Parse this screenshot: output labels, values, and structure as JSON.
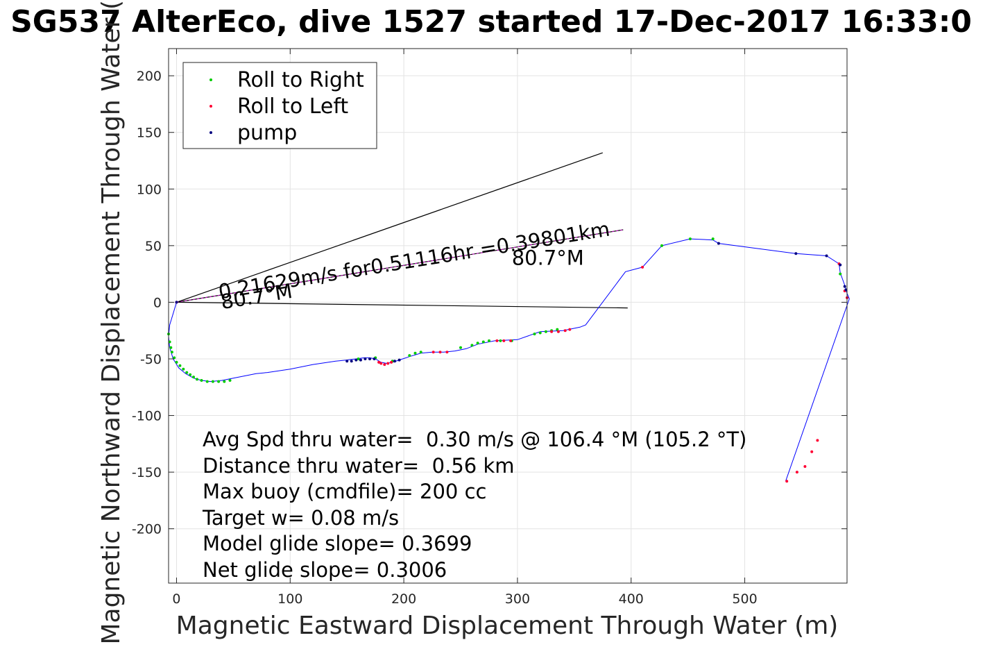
{
  "chart_data": {
    "type": "line",
    "title": "SG537 AlterEco, dive 1527 started 17-Dec-2017 16:33:0",
    "xlabel": "Magnetic Eastward Displacement Through Water (m)",
    "ylabel": "Magnetic Northward Displacement Through Water (",
    "xlim": [
      -7,
      590
    ],
    "ylim": [
      -248,
      224
    ],
    "xticks": [
      0,
      100,
      200,
      300,
      400,
      500
    ],
    "xtick_labels": [
      "0",
      "100",
      "200",
      "300",
      "400",
      "500"
    ],
    "yticks": [
      200,
      150,
      100,
      50,
      0,
      -50,
      -100,
      -150,
      -200
    ],
    "ytick_labels": [
      "200",
      "150",
      "100",
      "50",
      "0",
      "-50",
      "-100",
      "-150",
      "-200"
    ],
    "grid": true,
    "legend_position": "top-left",
    "colors": {
      "track": "#0000ff",
      "roll_right": "#00cc00",
      "roll_left": "#ff0033",
      "pump": "#000080",
      "wedge": "#000000",
      "avg_line": "#cc00cc"
    },
    "series": [
      {
        "name": "track",
        "x": [
          0,
          -3,
          -6,
          -7,
          -6,
          -3,
          2,
          8,
          15,
          22,
          30,
          40,
          50,
          60,
          70,
          80,
          100,
          120,
          140,
          150,
          158,
          165,
          170,
          175,
          180,
          185,
          190,
          196,
          205,
          215,
          225,
          235,
          245,
          255,
          265,
          280,
          300,
          320,
          340,
          355,
          360,
          395,
          410,
          427,
          452,
          472,
          477,
          545,
          572,
          583,
          584,
          588,
          590,
          592,
          536
        ],
        "y": [
          0,
          -10,
          -20,
          -30,
          -40,
          -50,
          -58,
          -63,
          -67,
          -69,
          -70,
          -69,
          -67,
          -65,
          -63,
          -62,
          -59,
          -55,
          -52,
          -51,
          -50,
          -49,
          -49,
          -50,
          -53,
          -54,
          -53,
          -51,
          -48,
          -45,
          -44,
          -44,
          -43,
          -41,
          -37,
          -34,
          -33,
          -26,
          -25,
          -22,
          -20,
          27,
          31,
          50,
          56,
          55,
          52,
          43,
          41,
          34,
          26,
          15,
          8,
          3,
          -158
        ]
      },
      {
        "name": "Roll to Right",
        "x": [
          -7,
          -6,
          -5,
          -4,
          -2,
          0,
          3,
          6,
          9,
          12,
          15,
          18,
          22,
          27,
          32,
          37,
          42,
          47,
          160,
          175,
          190,
          205,
          210,
          215,
          250,
          260,
          265,
          270,
          275,
          285,
          295,
          315,
          320,
          325,
          330,
          335,
          427,
          452,
          472,
          584
        ],
        "y": [
          -28,
          -35,
          -40,
          -44,
          -49,
          -53,
          -56,
          -59,
          -62,
          -64,
          -66,
          -68,
          -69,
          -70,
          -70,
          -70,
          -70,
          -69,
          -50,
          -49,
          -52,
          -47,
          -45,
          -44,
          -40,
          -38,
          -36,
          -35,
          -34,
          -34,
          -34,
          -28,
          -27,
          -26,
          -25,
          -24,
          50,
          56,
          56,
          25
        ]
      },
      {
        "name": "Roll to Left",
        "x": [
          0,
          178,
          180,
          183,
          186,
          189,
          226,
          232,
          238,
          282,
          288,
          294,
          330,
          336,
          342,
          346,
          410,
          583,
          588,
          590,
          537,
          546,
          553,
          559,
          564
        ],
        "y": [
          0,
          -53,
          -54,
          -55,
          -54,
          -53,
          -44,
          -44,
          -44,
          -34,
          -34,
          -34,
          -26,
          -26,
          -25,
          -24,
          31,
          34,
          10,
          4,
          -158,
          -150,
          -145,
          -132,
          -122
        ]
      },
      {
        "name": "pump",
        "x": [
          0,
          150,
          154,
          158,
          162,
          166,
          170,
          174,
          192,
          196,
          477,
          545,
          572,
          584,
          588,
          589
        ],
        "y": [
          0,
          -52,
          -52,
          -51,
          -51,
          -50,
          -50,
          -50,
          -52,
          -51,
          52,
          43,
          41,
          33,
          14,
          11
        ]
      },
      {
        "name": "wedge_upper",
        "x": [
          0,
          375
        ],
        "y": [
          0,
          132
        ]
      },
      {
        "name": "wedge_lower",
        "x": [
          0,
          397
        ],
        "y": [
          0,
          -5
        ]
      },
      {
        "name": "average_heading",
        "x": [
          0,
          393
        ],
        "y": [
          0,
          64
        ]
      }
    ],
    "legend": [
      {
        "label": "Roll to Right",
        "series": "Roll to Right"
      },
      {
        "label": "Roll to Left",
        "series": "Roll to Left"
      },
      {
        "label": "pump",
        "series": "pump"
      }
    ],
    "annotations": [
      {
        "id": "avg",
        "text": "0.21629m/s for0.51116hr =0.39801km",
        "x": 38,
        "y": 3,
        "angle": 9.2
      },
      {
        "id": "heading_start",
        "text": "80.7°M",
        "x": 40,
        "y": -6,
        "angle": 9.2
      },
      {
        "id": "heading_end",
        "text": "80.7°M",
        "x": 295,
        "y": 33,
        "angle": 0
      }
    ],
    "stats": [
      "Avg Spd thru water=  0.30 m/s @ 106.4 °M (105.2 °T)",
      "Distance thru water=  0.56 km",
      "Max buoy (cmdfile)= 200 cc",
      "Target w= 0.08 m/s",
      "Model glide slope= 0.3699",
      "Net glide slope= 0.3006"
    ]
  }
}
